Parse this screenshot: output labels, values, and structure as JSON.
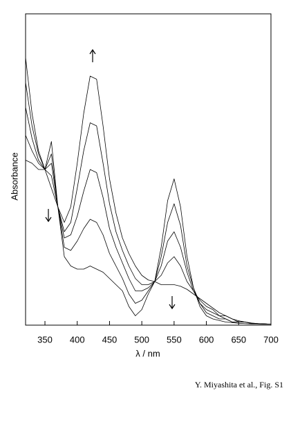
{
  "chart_data": {
    "type": "line",
    "x_label": "λ / nm",
    "y_label": "Absorbance",
    "caption": "Y. Miyashita et al., Fig. S1",
    "x": [
      320,
      330,
      340,
      350,
      360,
      370,
      380,
      390,
      400,
      410,
      420,
      430,
      440,
      450,
      460,
      470,
      480,
      490,
      500,
      510,
      520,
      530,
      540,
      550,
      560,
      570,
      580,
      590,
      600,
      610,
      620,
      630,
      640,
      650,
      660,
      670,
      680,
      690,
      700
    ],
    "series": [
      {
        "color": "#000000",
        "values": [
          0.53,
          0.52,
          0.5,
          0.5,
          0.59,
          0.38,
          0.22,
          0.19,
          0.18,
          0.18,
          0.19,
          0.18,
          0.17,
          0.15,
          0.13,
          0.11,
          0.06,
          0.03,
          0.05,
          0.1,
          0.14,
          0.25,
          0.4,
          0.47,
          0.38,
          0.22,
          0.12,
          0.06,
          0.03,
          0.02,
          0.015,
          0.01,
          0.008,
          0.006,
          0.005,
          0.004,
          0.004,
          0.003,
          0.003
        ]
      },
      {
        "color": "#000000",
        "values": [
          0.61,
          0.56,
          0.52,
          0.5,
          0.55,
          0.38,
          0.25,
          0.24,
          0.27,
          0.31,
          0.34,
          0.33,
          0.29,
          0.23,
          0.19,
          0.15,
          0.1,
          0.07,
          0.08,
          0.11,
          0.14,
          0.22,
          0.33,
          0.39,
          0.32,
          0.19,
          0.12,
          0.07,
          0.04,
          0.03,
          0.02,
          0.02,
          0.01,
          0.01,
          0.01,
          0.005,
          0.004,
          0.003,
          0.003
        ]
      },
      {
        "color": "#000000",
        "values": [
          0.7,
          0.6,
          0.53,
          0.5,
          0.52,
          0.38,
          0.28,
          0.29,
          0.35,
          0.43,
          0.5,
          0.49,
          0.41,
          0.31,
          0.25,
          0.2,
          0.15,
          0.11,
          0.11,
          0.12,
          0.14,
          0.19,
          0.27,
          0.3,
          0.25,
          0.17,
          0.11,
          0.07,
          0.05,
          0.04,
          0.03,
          0.02,
          0.01,
          0.01,
          0.01,
          0.006,
          0.005,
          0.004,
          0.003
        ]
      },
      {
        "color": "#000000",
        "values": [
          0.78,
          0.64,
          0.55,
          0.5,
          0.48,
          0.38,
          0.3,
          0.33,
          0.44,
          0.56,
          0.65,
          0.64,
          0.52,
          0.39,
          0.3,
          0.24,
          0.19,
          0.15,
          0.13,
          0.13,
          0.14,
          0.16,
          0.2,
          0.22,
          0.19,
          0.14,
          0.11,
          0.08,
          0.06,
          0.05,
          0.03,
          0.03,
          0.02,
          0.01,
          0.01,
          0.006,
          0.005,
          0.004,
          0.003
        ]
      },
      {
        "color": "#000000",
        "values": [
          0.86,
          0.68,
          0.56,
          0.5,
          0.44,
          0.38,
          0.33,
          0.38,
          0.52,
          0.68,
          0.8,
          0.79,
          0.64,
          0.47,
          0.36,
          0.28,
          0.23,
          0.19,
          0.16,
          0.145,
          0.14,
          0.13,
          0.13,
          0.13,
          0.125,
          0.115,
          0.1,
          0.085,
          0.07,
          0.055,
          0.04,
          0.03,
          0.02,
          0.014,
          0.01,
          0.007,
          0.005,
          0.004,
          0.003
        ]
      }
    ],
    "xlim": [
      320,
      700
    ],
    "xticks": [
      350,
      400,
      450,
      500,
      550,
      600,
      650,
      700
    ],
    "ylim": [
      0,
      1
    ]
  }
}
